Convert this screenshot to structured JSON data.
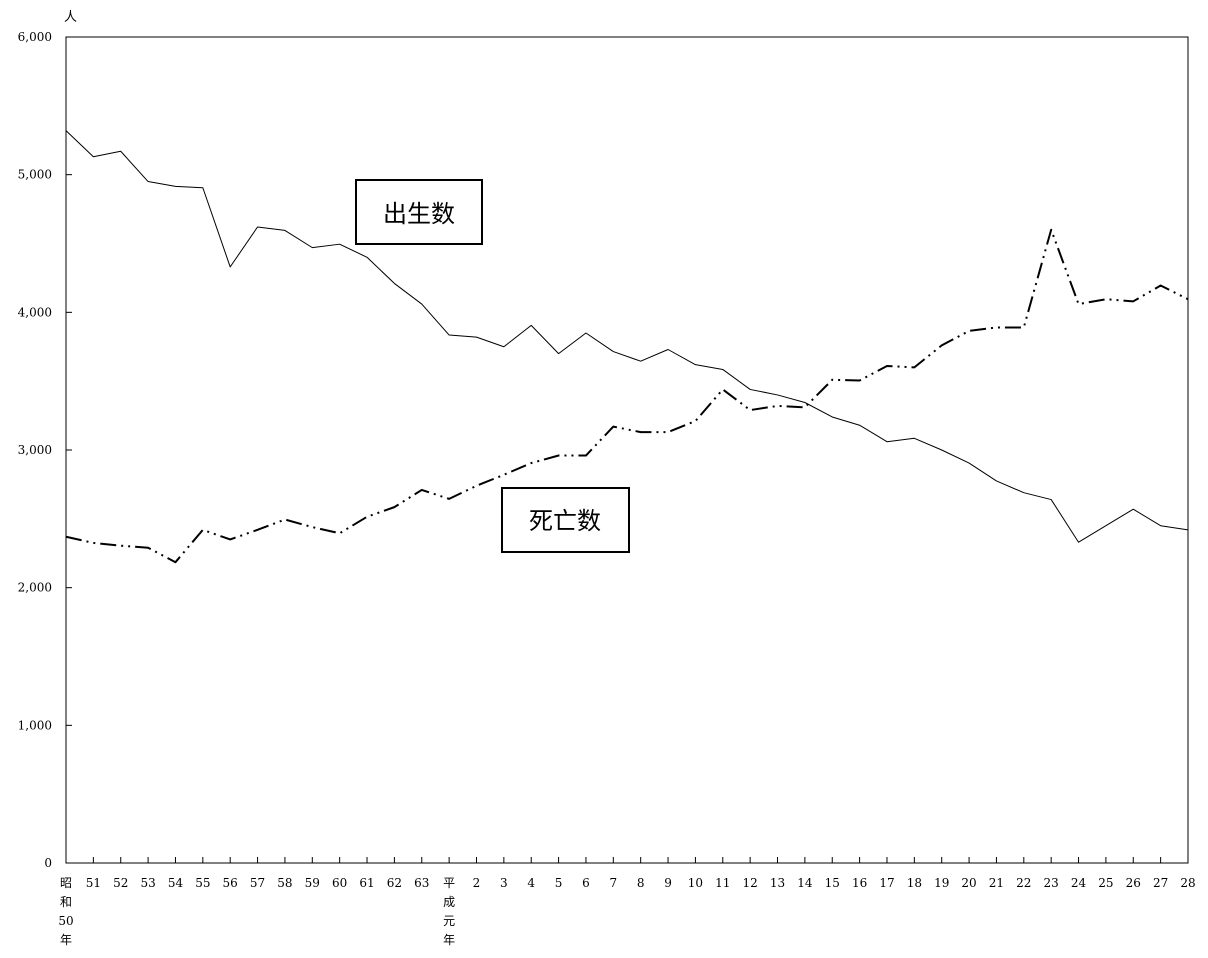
{
  "chart_data": {
    "type": "line",
    "unit_label": "人",
    "ylim": [
      0,
      6000
    ],
    "y_ticks": [
      0,
      1000,
      2000,
      3000,
      4000,
      5000,
      6000
    ],
    "y_tick_labels": [
      "0",
      "1,000",
      "2,000",
      "3,000",
      "4,000",
      "5,000",
      "6,000"
    ],
    "categories": [
      [
        "昭",
        "和",
        "50",
        "年"
      ],
      [
        "51"
      ],
      [
        "52"
      ],
      [
        "53"
      ],
      [
        "54"
      ],
      [
        "55"
      ],
      [
        "56"
      ],
      [
        "57"
      ],
      [
        "58"
      ],
      [
        "59"
      ],
      [
        "60"
      ],
      [
        "61"
      ],
      [
        "62"
      ],
      [
        "63"
      ],
      [
        "平",
        "成",
        "元",
        "年"
      ],
      [
        "2"
      ],
      [
        "3"
      ],
      [
        "4"
      ],
      [
        "5"
      ],
      [
        "6"
      ],
      [
        "7"
      ],
      [
        "8"
      ],
      [
        "9"
      ],
      [
        "10"
      ],
      [
        "11"
      ],
      [
        "12"
      ],
      [
        "13"
      ],
      [
        "14"
      ],
      [
        "15"
      ],
      [
        "16"
      ],
      [
        "17"
      ],
      [
        "18"
      ],
      [
        "19"
      ],
      [
        "20"
      ],
      [
        "21"
      ],
      [
        "22"
      ],
      [
        "23"
      ],
      [
        "24"
      ],
      [
        "25"
      ],
      [
        "26"
      ],
      [
        "27"
      ],
      [
        "28"
      ]
    ],
    "series": [
      {
        "name": "出生数",
        "style": "solid",
        "color": "#000000",
        "values": [
          5320,
          5130,
          5170,
          4950,
          4915,
          4905,
          4330,
          4620,
          4595,
          4470,
          4495,
          4400,
          4210,
          4060,
          3835,
          3820,
          3750,
          3905,
          3700,
          3850,
          3715,
          3645,
          3730,
          3620,
          3585,
          3440,
          3400,
          3345,
          3240,
          3180,
          3060,
          3085,
          3000,
          2905,
          2775,
          2690,
          2640,
          2330,
          2450,
          2570,
          2450,
          2420
        ]
      },
      {
        "name": "死亡数",
        "style": "dash-dot",
        "color": "#000000",
        "values": [
          2370,
          2325,
          2305,
          2290,
          2185,
          2420,
          2350,
          2420,
          2495,
          2440,
          2395,
          2515,
          2585,
          2710,
          2645,
          2740,
          2820,
          2905,
          2960,
          2960,
          3170,
          3130,
          3130,
          3210,
          3440,
          3290,
          3320,
          3310,
          3510,
          3505,
          3610,
          3600,
          3760,
          3865,
          3890,
          3890,
          4600,
          4060,
          4095,
          4080,
          4195,
          4095
        ]
      }
    ]
  }
}
